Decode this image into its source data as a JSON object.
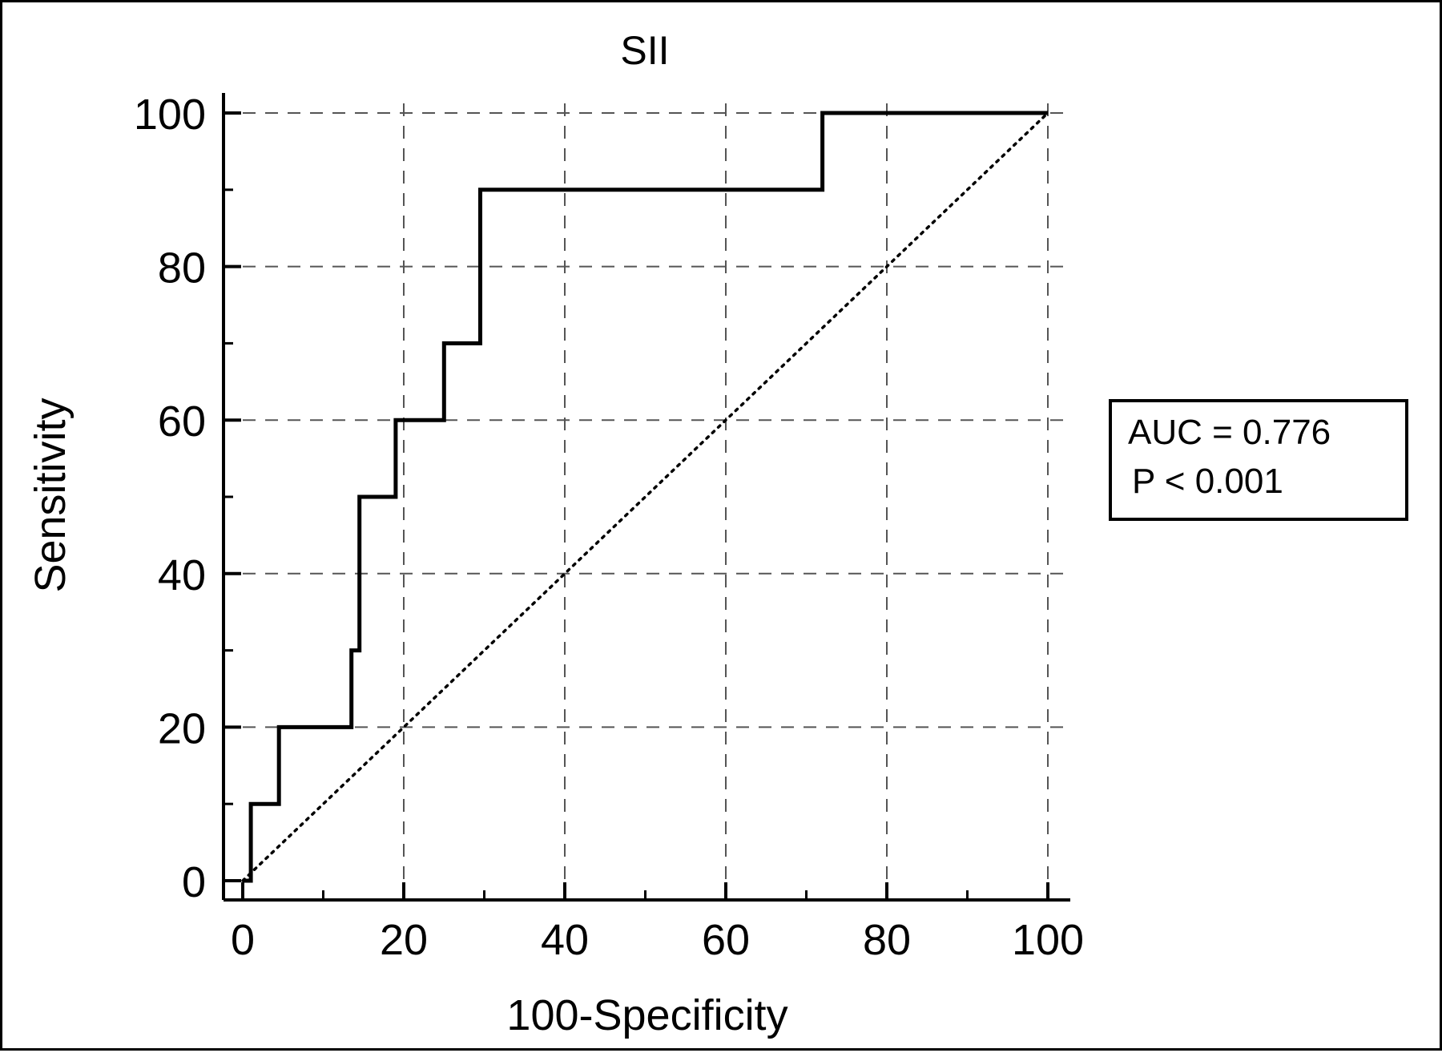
{
  "chart_data": {
    "type": "line",
    "title": "SII",
    "xlabel": "100-Specificity",
    "ylabel": "Sensitivity",
    "xlim": [
      0,
      100
    ],
    "ylim": [
      0,
      100
    ],
    "x_ticks": [
      0,
      20,
      40,
      60,
      80,
      100
    ],
    "y_ticks": [
      0,
      20,
      40,
      60,
      80,
      100
    ],
    "grid": true,
    "legend": "none",
    "series": [
      {
        "style": "solid-step",
        "color": "#000000",
        "x": [
          0,
          1,
          1,
          4.5,
          4.5,
          13.5,
          13.5,
          14.5,
          14.5,
          19,
          19,
          25,
          25,
          29.5,
          29.5,
          72,
          72,
          100
        ],
        "y": [
          0,
          0,
          10,
          10,
          20,
          20,
          30,
          30,
          50,
          50,
          60,
          60,
          70,
          70,
          90,
          90,
          100,
          100
        ]
      },
      {
        "style": "dotted-reference",
        "color": "#000000",
        "x": [
          0,
          100
        ],
        "y": [
          0,
          100
        ]
      }
    ],
    "annotations": [
      {
        "text": "AUC = 0.776"
      },
      {
        "text": "P < 0.001"
      }
    ]
  }
}
